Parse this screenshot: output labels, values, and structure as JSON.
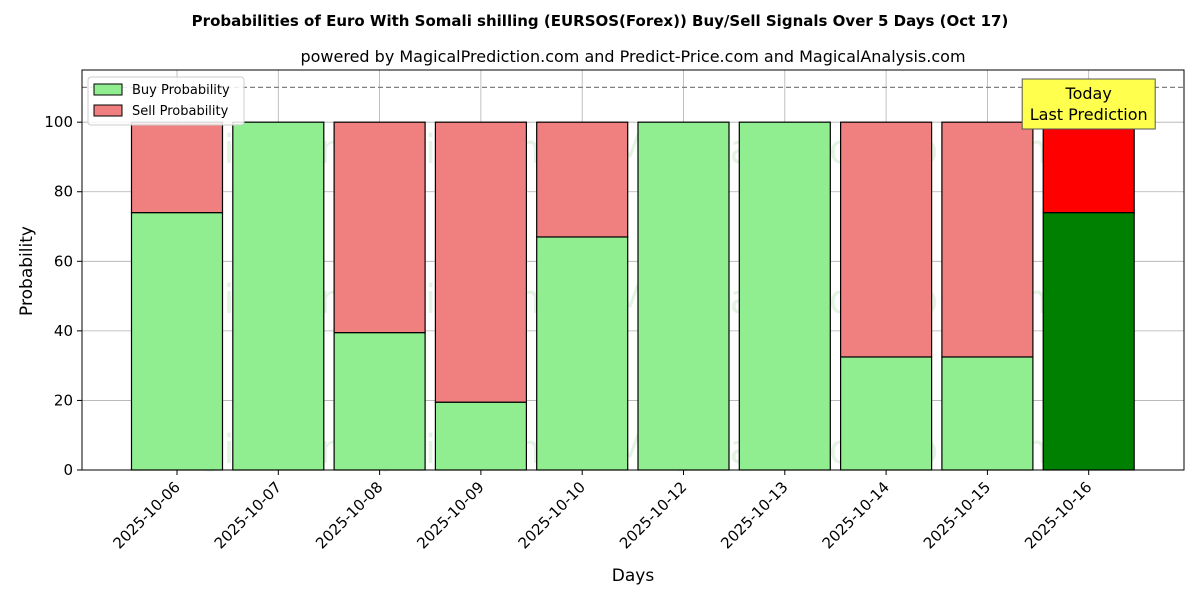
{
  "chart_data": {
    "type": "bar",
    "stacked": true,
    "title": "Probabilities of Euro With Somali shilling (EURSOS(Forex)) Buy/Sell Signals Over 5 Days (Oct 17)",
    "subtitle": "powered by MagicalPrediction.com and Predict-Price.com and MagicalAnalysis.com",
    "xlabel": "Days",
    "ylabel": "Probability",
    "ylim": [
      0,
      115
    ],
    "yticks": [
      0,
      20,
      40,
      60,
      80,
      100
    ],
    "reference_line": 110,
    "grid": true,
    "legend_position": "top-left",
    "categories": [
      "2025-10-06",
      "2025-10-07",
      "2025-10-08",
      "2025-10-09",
      "2025-10-10",
      "2025-10-12",
      "2025-10-13",
      "2025-10-14",
      "2025-10-15",
      "2025-10-16"
    ],
    "series": [
      {
        "name": "Buy Probability",
        "color": "#90ee90",
        "values": [
          74,
          100,
          39.5,
          19.5,
          67,
          100,
          100,
          32.5,
          32.5,
          74
        ]
      },
      {
        "name": "Sell Probability",
        "color": "#f08080",
        "values": [
          26,
          0,
          60.5,
          80.5,
          33,
          0,
          0,
          67.5,
          67.5,
          26
        ]
      }
    ],
    "highlight": {
      "index": 9,
      "buy_color": "#008000",
      "sell_color": "#ff0000"
    },
    "annotation": {
      "lines": [
        "Today",
        "Last Prediction"
      ],
      "background": "#ffff4d"
    },
    "watermarks": [
      "MagicalAnalysis.com",
      "MagicalPrediction.com"
    ]
  }
}
